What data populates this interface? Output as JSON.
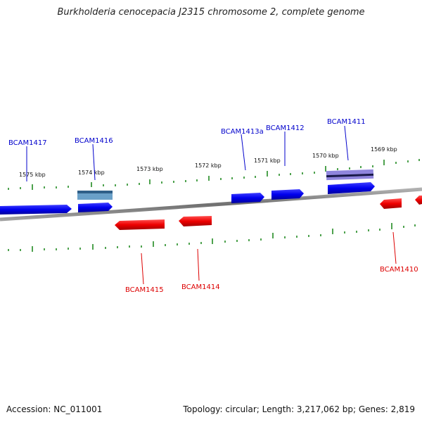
{
  "title": "Burkholderia cenocepacia J2315 chromosome 2, complete genome",
  "footer": {
    "accession": "Accession: NC_011001",
    "summary": "Topology: circular; Length: 3,217,062 bp; Genes: 2,819"
  },
  "colors": {
    "forward": "#0000ee",
    "reverse": "#ee0000",
    "backbone": "#808080",
    "ticks": "#228b22",
    "rna": "#4a7fa8",
    "pseudo": "#7a6fd0"
  },
  "kbp_labels": [
    "1575 kbp",
    "1574 kbp",
    "1573 kbp",
    "1572 kbp",
    "1571 kbp",
    "1570 kbp",
    "1569 kbp"
  ],
  "gene_labels": {
    "BCAM1417": "BCAM1417",
    "BCAM1416": "BCAM1416",
    "BCAM1413a": "BCAM1413a",
    "BCAM1412": "BCAM1412",
    "BCAM1411": "BCAM1411",
    "BCAM1415": "BCAM1415",
    "BCAM1414": "BCAM1414",
    "BCAM1410": "BCAM1410"
  }
}
